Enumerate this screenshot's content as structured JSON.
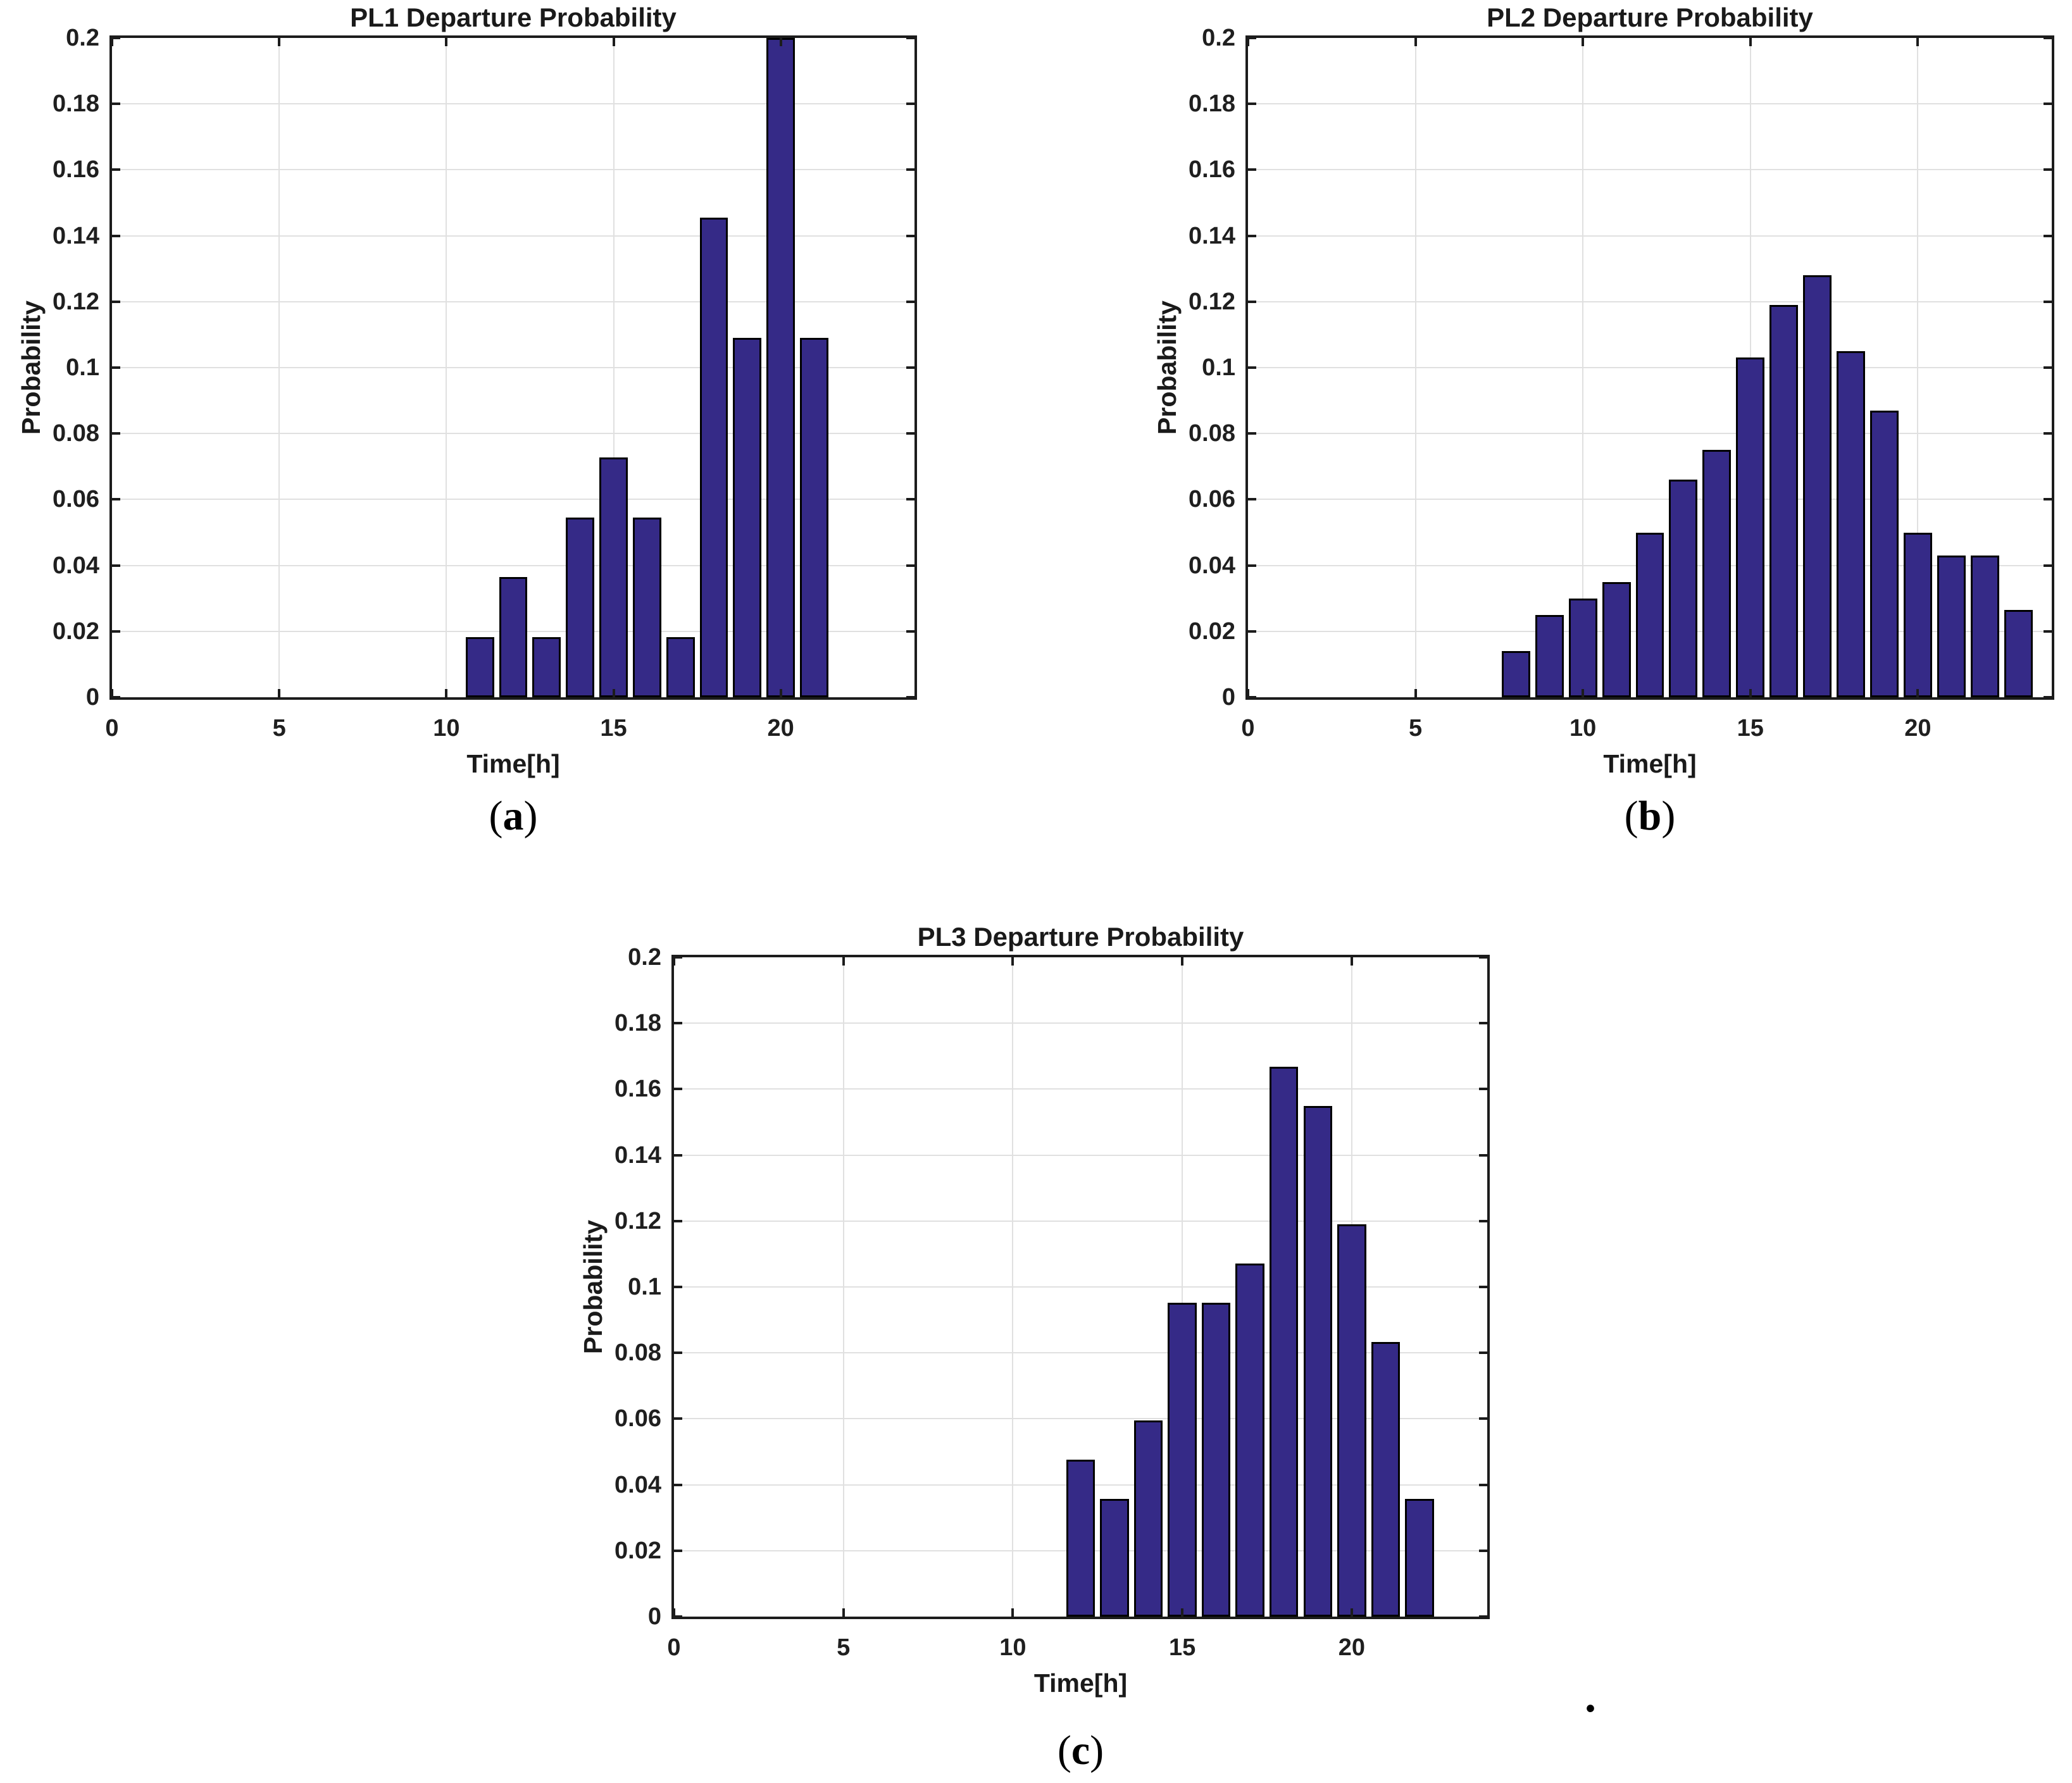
{
  "style": {
    "background": "#ffffff",
    "bar_fill": "#352a87",
    "bar_edge": "#000000",
    "grid_color": "#e0e0e0",
    "axis_color": "#1c1c1c",
    "text_color": "#1a1a1a"
  },
  "stray_dot": ".",
  "chart_data": [
    {
      "id": "pl1",
      "type": "bar",
      "title": "PL1 Departure Probability",
      "xlabel": "Time[h]",
      "ylabel": "Probability",
      "caption_open": "(",
      "caption_letter": "a",
      "caption_close": ")",
      "xlim": [
        0,
        24
      ],
      "ylim": [
        0,
        0.2
      ],
      "grid": true,
      "legend": "none",
      "xticks": [
        0,
        5,
        10,
        15,
        20
      ],
      "xtick_labels": [
        "0",
        "5",
        "10",
        "15",
        "20"
      ],
      "yticks": [
        0,
        0.02,
        0.04,
        0.06,
        0.08,
        0.1,
        0.12,
        0.14,
        0.16,
        0.18,
        0.2
      ],
      "ytick_labels": [
        "0",
        "0.02",
        "0.04",
        "0.06",
        "0.08",
        "0.1",
        "0.12",
        "0.14",
        "0.16",
        "0.18",
        "0.2"
      ],
      "bar_width": 0.85,
      "x": [
        11,
        12,
        13,
        14,
        15,
        16,
        17,
        18,
        19,
        20,
        21
      ],
      "values": [
        0.0182,
        0.0364,
        0.0182,
        0.0545,
        0.0727,
        0.0545,
        0.0182,
        0.1455,
        0.1091,
        0.2,
        0.1091
      ]
    },
    {
      "id": "pl2",
      "type": "bar",
      "title": "PL2 Departure Probability",
      "xlabel": "Time[h]",
      "ylabel": "Probability",
      "caption_open": "(",
      "caption_letter": "b",
      "caption_close": ")",
      "xlim": [
        0,
        24
      ],
      "ylim": [
        0,
        0.2
      ],
      "grid": true,
      "legend": "none",
      "xticks": [
        0,
        5,
        10,
        15,
        20
      ],
      "xtick_labels": [
        "0",
        "5",
        "10",
        "15",
        "20"
      ],
      "yticks": [
        0,
        0.02,
        0.04,
        0.06,
        0.08,
        0.1,
        0.12,
        0.14,
        0.16,
        0.18,
        0.2
      ],
      "ytick_labels": [
        "0",
        "0.02",
        "0.04",
        "0.06",
        "0.08",
        "0.1",
        "0.12",
        "0.14",
        "0.16",
        "0.18",
        "0.2"
      ],
      "bar_width": 0.85,
      "x": [
        8,
        9,
        10,
        11,
        12,
        13,
        14,
        15,
        16,
        17,
        18,
        19,
        20,
        21,
        22,
        23
      ],
      "values": [
        0.014,
        0.025,
        0.03,
        0.035,
        0.05,
        0.066,
        0.075,
        0.103,
        0.119,
        0.128,
        0.105,
        0.087,
        0.05,
        0.043,
        0.043,
        0.0265
      ]
    },
    {
      "id": "pl3",
      "type": "bar",
      "title": "PL3 Departure Probability",
      "xlabel": "Time[h]",
      "ylabel": "Probability",
      "caption_open": "(",
      "caption_letter": "c",
      "caption_close": ")",
      "xlim": [
        0,
        24
      ],
      "ylim": [
        0,
        0.2
      ],
      "grid": true,
      "legend": "none",
      "xticks": [
        0,
        5,
        10,
        15,
        20
      ],
      "xtick_labels": [
        "0",
        "5",
        "10",
        "15",
        "20"
      ],
      "yticks": [
        0,
        0.02,
        0.04,
        0.06,
        0.08,
        0.1,
        0.12,
        0.14,
        0.16,
        0.18,
        0.2
      ],
      "ytick_labels": [
        "0",
        "0.02",
        "0.04",
        "0.06",
        "0.08",
        "0.1",
        "0.12",
        "0.14",
        "0.16",
        "0.18",
        "0.2"
      ],
      "bar_width": 0.85,
      "x": [
        12,
        13,
        14,
        15,
        16,
        17,
        18,
        19,
        20,
        21,
        22
      ],
      "values": [
        0.0476,
        0.0357,
        0.0595,
        0.0952,
        0.0952,
        0.1071,
        0.1667,
        0.1548,
        0.119,
        0.0833,
        0.0357
      ]
    }
  ]
}
